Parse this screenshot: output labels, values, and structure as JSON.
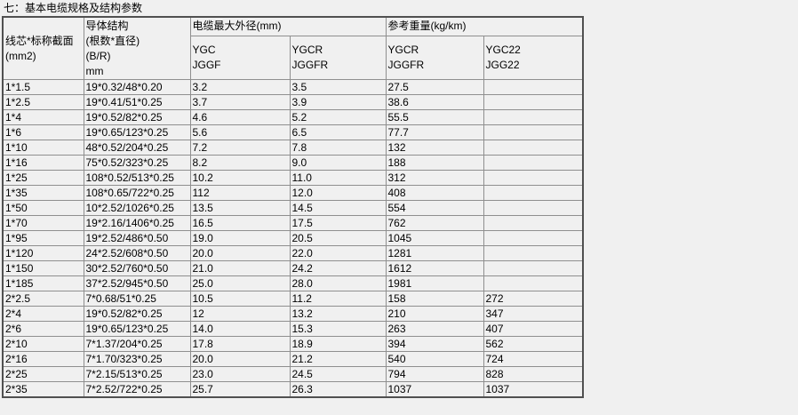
{
  "page_title": "七：基本电缆规格及结构参数",
  "colors": {
    "background": "#f0f0f0",
    "grid_line": "#8f8f8f",
    "outer_border": "#505050",
    "text": "#000000"
  },
  "table": {
    "headers": {
      "core_section": "线芯*标称截面\n(mm2)",
      "conductor_structure": "导体结构\n(根数*直径)\n(B/R)\nmm",
      "max_od_group": "电缆最大外径(mm)",
      "weight_group": "参考重量(kg/km)",
      "sub_headers": [
        "YGC\nJGGF",
        "YGCR\nJGGFR",
        "YGCR\nJGGFR",
        "YGC22\nJGG22"
      ]
    },
    "rows": [
      [
        "1*1.5",
        "19*0.32/48*0.20",
        "3.2",
        "3.5",
        "27.5",
        ""
      ],
      [
        "1*2.5",
        "19*0.41/51*0.25",
        "3.7",
        "3.9",
        "38.6",
        ""
      ],
      [
        "1*4",
        "19*0.52/82*0.25",
        "4.6",
        "5.2",
        "55.5",
        ""
      ],
      [
        "1*6",
        "19*0.65/123*0.25",
        "5.6",
        "6.5",
        "77.7",
        ""
      ],
      [
        "1*10",
        "48*0.52/204*0.25",
        "7.2",
        "7.8",
        "132",
        ""
      ],
      [
        "1*16",
        "75*0.52/323*0.25",
        "8.2",
        "9.0",
        "188",
        ""
      ],
      [
        "1*25",
        "108*0.52/513*0.25",
        "10.2",
        "11.0",
        "312",
        ""
      ],
      [
        "1*35",
        "108*0.65/722*0.25",
        "112",
        "12.0",
        "408",
        ""
      ],
      [
        "1*50",
        "10*2.52/1026*0.25",
        "13.5",
        "14.5",
        "554",
        ""
      ],
      [
        "1*70",
        "19*2.16/1406*0.25",
        "16.5",
        "17.5",
        "762",
        ""
      ],
      [
        "1*95",
        "19*2.52/486*0.50",
        "19.0",
        "20.5",
        "1045",
        ""
      ],
      [
        "1*120",
        "24*2.52/608*0.50",
        "20.0",
        "22.0",
        "1281",
        ""
      ],
      [
        "1*150",
        "30*2.52/760*0.50",
        "21.0",
        "24.2",
        "1612",
        ""
      ],
      [
        "1*185",
        "37*2.52/945*0.50",
        "25.0",
        "28.0",
        "1981",
        ""
      ],
      [
        "2*2.5",
        "7*0.68/51*0.25",
        "10.5",
        "11.2",
        "158",
        "272"
      ],
      [
        "2*4",
        "19*0.52/82*0.25",
        "12",
        "13.2",
        "210",
        "347"
      ],
      [
        "2*6",
        "19*0.65/123*0.25",
        "14.0",
        "15.3",
        "263",
        "407"
      ],
      [
        "2*10",
        "7*1.37/204*0.25",
        "17.8",
        "18.9",
        "394",
        "562"
      ],
      [
        "2*16",
        "7*1.70/323*0.25",
        "20.0",
        "21.2",
        "540",
        "724"
      ],
      [
        "2*25",
        "7*2.15/513*0.25",
        "23.0",
        "24.5",
        "794",
        "828"
      ],
      [
        "2*35",
        "7*2.52/722*0.25",
        "25.7",
        "26.3",
        "1037",
        "1037"
      ]
    ]
  }
}
